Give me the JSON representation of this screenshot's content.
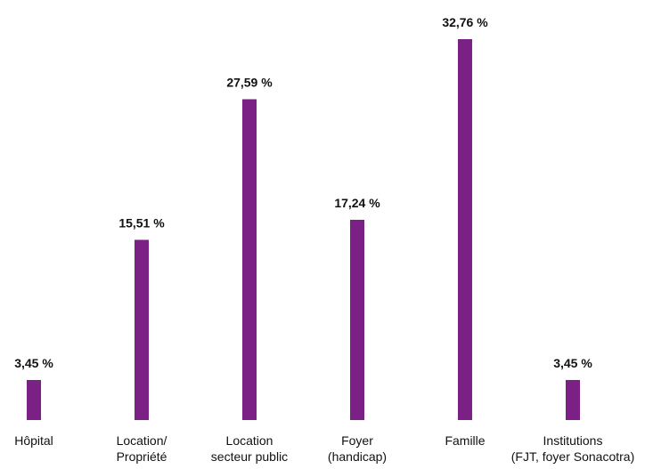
{
  "chart_data": {
    "type": "bar",
    "categories": [
      [
        "Hôpital"
      ],
      [
        "Location/",
        "Propriété"
      ],
      [
        "Location",
        "secteur public"
      ],
      [
        "Foyer",
        "(handicap)"
      ],
      [
        "Famille"
      ],
      [
        "Institutions",
        "(FJT, foyer Sonacotra)"
      ]
    ],
    "values": [
      3.45,
      15.51,
      27.59,
      17.24,
      32.76,
      3.45
    ],
    "value_labels": [
      "3,45 %",
      "15,51 %",
      "27,59 %",
      "17,24 %",
      "32,76 %",
      "3,45 %"
    ],
    "ylim": [
      0,
      32.76
    ],
    "grid": false,
    "bar_color": "#7b2185",
    "title": "",
    "xlabel": "",
    "ylabel": ""
  }
}
